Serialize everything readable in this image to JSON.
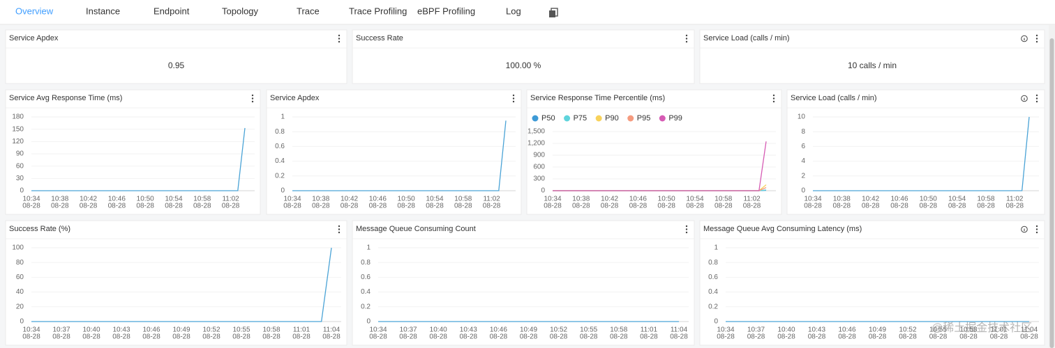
{
  "tabs": [
    "Overview",
    "Instance",
    "Endpoint",
    "Topology",
    "Trace",
    "Trace Profiling",
    "eBPF Profiling",
    "Log"
  ],
  "cards": [
    {
      "title": "Service Apdex",
      "value": "0.95"
    },
    {
      "title": "Success Rate",
      "value": "100.00 %"
    },
    {
      "title": "Service Load (calls / min)",
      "value": "10 calls / min"
    }
  ],
  "watermark": "@稀土掘金技术社区",
  "chart_data": [
    {
      "type": "line",
      "title": "Service Avg Response Time (ms)",
      "color": "#4aa3d6",
      "categories": [
        "10:34",
        null,
        null,
        null,
        "10:38",
        null,
        null,
        null,
        "10:42",
        null,
        null,
        null,
        "10:46",
        null,
        null,
        null,
        "10:50",
        null,
        null,
        null,
        "10:54",
        null,
        null,
        null,
        "10:58",
        null,
        null,
        null,
        "11:02",
        null,
        null
      ],
      "category_dates": [
        "08-28",
        null,
        null,
        null,
        "08-28",
        null,
        null,
        null,
        "08-28",
        null,
        null,
        null,
        "08-28",
        null,
        null,
        null,
        "08-28",
        null,
        null,
        null,
        "08-28",
        null,
        null,
        null,
        "08-28",
        null,
        null,
        null,
        "08-28",
        null,
        null
      ],
      "values": [
        0,
        0,
        0,
        0,
        0,
        0,
        0,
        0,
        0,
        0,
        0,
        0,
        0,
        0,
        0,
        0,
        0,
        0,
        0,
        0,
        0,
        0,
        0,
        0,
        0,
        0,
        0,
        0,
        0,
        0,
        153
      ],
      "ylim": [
        0,
        180
      ],
      "yticks": [
        0,
        30,
        60,
        90,
        120,
        150,
        180
      ],
      "grid": true
    },
    {
      "type": "line",
      "title": "Service Apdex",
      "color": "#4aa3d6",
      "categories": [
        "10:34",
        null,
        null,
        null,
        "10:38",
        null,
        null,
        null,
        "10:42",
        null,
        null,
        null,
        "10:46",
        null,
        null,
        null,
        "10:50",
        null,
        null,
        null,
        "10:54",
        null,
        null,
        null,
        "10:58",
        null,
        null,
        null,
        "11:02",
        null,
        null
      ],
      "category_dates": [
        "08-28",
        null,
        null,
        null,
        "08-28",
        null,
        null,
        null,
        "08-28",
        null,
        null,
        null,
        "08-28",
        null,
        null,
        null,
        "08-28",
        null,
        null,
        null,
        "08-28",
        null,
        null,
        null,
        "08-28",
        null,
        null,
        null,
        "08-28",
        null,
        null
      ],
      "values": [
        0,
        0,
        0,
        0,
        0,
        0,
        0,
        0,
        0,
        0,
        0,
        0,
        0,
        0,
        0,
        0,
        0,
        0,
        0,
        0,
        0,
        0,
        0,
        0,
        0,
        0,
        0,
        0,
        0,
        0,
        0.95
      ],
      "ylim": [
        0,
        1
      ],
      "yticks": [
        0,
        0.2,
        0.4,
        0.6,
        0.8,
        1
      ],
      "grid": true
    },
    {
      "type": "line",
      "title": "Service Response Time Percentile (ms)",
      "categories": [
        "10:34",
        null,
        null,
        null,
        "10:38",
        null,
        null,
        null,
        "10:42",
        null,
        null,
        null,
        "10:46",
        null,
        null,
        null,
        "10:50",
        null,
        null,
        null,
        "10:54",
        null,
        null,
        null,
        "10:58",
        null,
        null,
        null,
        "11:02",
        null,
        null
      ],
      "category_dates": [
        "08-28",
        null,
        null,
        null,
        "08-28",
        null,
        null,
        null,
        "08-28",
        null,
        null,
        null,
        "08-28",
        null,
        null,
        null,
        "08-28",
        null,
        null,
        null,
        "08-28",
        null,
        null,
        null,
        "08-28",
        null,
        null,
        null,
        "08-28",
        null,
        null
      ],
      "series": [
        {
          "name": "P50",
          "color": "#3d9ad6",
          "values": [
            0,
            0,
            0,
            0,
            0,
            0,
            0,
            0,
            0,
            0,
            0,
            0,
            0,
            0,
            0,
            0,
            0,
            0,
            0,
            0,
            0,
            0,
            0,
            0,
            0,
            0,
            0,
            0,
            0,
            0,
            10
          ]
        },
        {
          "name": "P75",
          "color": "#5fd4dc",
          "values": [
            0,
            0,
            0,
            0,
            0,
            0,
            0,
            0,
            0,
            0,
            0,
            0,
            0,
            0,
            0,
            0,
            0,
            0,
            0,
            0,
            0,
            0,
            0,
            0,
            0,
            0,
            0,
            0,
            0,
            0,
            20
          ]
        },
        {
          "name": "P90",
          "color": "#f8d25b",
          "values": [
            0,
            0,
            0,
            0,
            0,
            0,
            0,
            0,
            0,
            0,
            0,
            0,
            0,
            0,
            0,
            0,
            0,
            0,
            0,
            0,
            0,
            0,
            0,
            0,
            0,
            0,
            0,
            0,
            0,
            0,
            150
          ]
        },
        {
          "name": "P95",
          "color": "#f59b7f",
          "values": [
            0,
            0,
            0,
            0,
            0,
            0,
            0,
            0,
            0,
            0,
            0,
            0,
            0,
            0,
            0,
            0,
            0,
            0,
            0,
            0,
            0,
            0,
            0,
            0,
            0,
            0,
            0,
            0,
            0,
            0,
            80
          ]
        },
        {
          "name": "P99",
          "color": "#d65bb4",
          "values": [
            0,
            0,
            0,
            0,
            0,
            0,
            0,
            0,
            0,
            0,
            0,
            0,
            0,
            0,
            0,
            0,
            0,
            0,
            0,
            0,
            0,
            0,
            0,
            0,
            0,
            0,
            0,
            0,
            0,
            0,
            1250
          ]
        }
      ],
      "ylim": [
        0,
        1500
      ],
      "yticks": [
        0,
        300,
        600,
        900,
        {
          "value": 1200,
          "label": "1,200"
        },
        {
          "value": 1500,
          "label": "1,500"
        }
      ],
      "grid": true
    },
    {
      "type": "line",
      "title": "Service Load (calls / min)",
      "color": "#4aa3d6",
      "categories": [
        "10:34",
        null,
        null,
        null,
        "10:38",
        null,
        null,
        null,
        "10:42",
        null,
        null,
        null,
        "10:46",
        null,
        null,
        null,
        "10:50",
        null,
        null,
        null,
        "10:54",
        null,
        null,
        null,
        "10:58",
        null,
        null,
        null,
        "11:02",
        null,
        null
      ],
      "category_dates": [
        "08-28",
        null,
        null,
        null,
        "08-28",
        null,
        null,
        null,
        "08-28",
        null,
        null,
        null,
        "08-28",
        null,
        null,
        null,
        "08-28",
        null,
        null,
        null,
        "08-28",
        null,
        null,
        null,
        "08-28",
        null,
        null,
        null,
        "08-28",
        null,
        null
      ],
      "values": [
        0,
        0,
        0,
        0,
        0,
        0,
        0,
        0,
        0,
        0,
        0,
        0,
        0,
        0,
        0,
        0,
        0,
        0,
        0,
        0,
        0,
        0,
        0,
        0,
        0,
        0,
        0,
        0,
        0,
        0,
        10
      ],
      "ylim": [
        0,
        10
      ],
      "yticks": [
        0,
        2,
        4,
        6,
        8,
        10
      ],
      "grid": true
    },
    {
      "type": "line",
      "title": "Success Rate (%)",
      "color": "#4aa3d6",
      "categories": [
        "10:34",
        null,
        null,
        "10:37",
        null,
        null,
        "10:40",
        null,
        null,
        "10:43",
        null,
        null,
        "10:46",
        null,
        null,
        "10:49",
        null,
        null,
        "10:52",
        null,
        null,
        "10:55",
        null,
        null,
        "10:58",
        null,
        null,
        "11:01",
        null,
        null,
        "11:04"
      ],
      "category_dates": [
        "08-28",
        null,
        null,
        "08-28",
        null,
        null,
        "08-28",
        null,
        null,
        "08-28",
        null,
        null,
        "08-28",
        null,
        null,
        "08-28",
        null,
        null,
        "08-28",
        null,
        null,
        "08-28",
        null,
        null,
        "08-28",
        null,
        null,
        "08-28",
        null,
        null,
        "08-28"
      ],
      "values": [
        0,
        0,
        0,
        0,
        0,
        0,
        0,
        0,
        0,
        0,
        0,
        0,
        0,
        0,
        0,
        0,
        0,
        0,
        0,
        0,
        0,
        0,
        0,
        0,
        0,
        0,
        0,
        0,
        0,
        0,
        100
      ],
      "ylim": [
        0,
        100
      ],
      "yticks": [
        0,
        20,
        40,
        60,
        80,
        100
      ],
      "grid": true
    },
    {
      "type": "line",
      "title": "Message Queue Consuming Count",
      "color": "#4aa3d6",
      "categories": [
        "10:34",
        null,
        null,
        "10:37",
        null,
        null,
        "10:40",
        null,
        null,
        "10:43",
        null,
        null,
        "10:46",
        null,
        null,
        "10:49",
        null,
        null,
        "10:52",
        null,
        null,
        "10:55",
        null,
        null,
        "10:58",
        null,
        null,
        "11:01",
        null,
        null,
        "11:04"
      ],
      "category_dates": [
        "08-28",
        null,
        null,
        "08-28",
        null,
        null,
        "08-28",
        null,
        null,
        "08-28",
        null,
        null,
        "08-28",
        null,
        null,
        "08-28",
        null,
        null,
        "08-28",
        null,
        null,
        "08-28",
        null,
        null,
        "08-28",
        null,
        null,
        "08-28",
        null,
        null,
        "08-28"
      ],
      "values": [
        0,
        0,
        0,
        0,
        0,
        0,
        0,
        0,
        0,
        0,
        0,
        0,
        0,
        0,
        0,
        0,
        0,
        0,
        0,
        0,
        0,
        0,
        0,
        0,
        0,
        0,
        0,
        0,
        0,
        0,
        0
      ],
      "ylim": [
        0,
        1
      ],
      "yticks": [
        0,
        0.2,
        0.4,
        0.6,
        0.8,
        1
      ],
      "grid": true
    },
    {
      "type": "line",
      "title": "Message Queue Avg Consuming Latency (ms)",
      "color": "#4aa3d6",
      "categories": [
        "10:34",
        null,
        null,
        "10:37",
        null,
        null,
        "10:40",
        null,
        null,
        "10:43",
        null,
        null,
        "10:46",
        null,
        null,
        "10:49",
        null,
        null,
        "10:52",
        null,
        null,
        "10:55",
        null,
        null,
        "10:58",
        null,
        null,
        "11:01",
        null,
        null,
        "11:04"
      ],
      "category_dates": [
        "08-28",
        null,
        null,
        "08-28",
        null,
        null,
        "08-28",
        null,
        null,
        "08-28",
        null,
        null,
        "08-28",
        null,
        null,
        "08-28",
        null,
        null,
        "08-28",
        null,
        null,
        "08-28",
        null,
        null,
        "08-28",
        null,
        null,
        "08-28",
        null,
        null,
        "08-28"
      ],
      "values": [
        0,
        0,
        0,
        0,
        0,
        0,
        0,
        0,
        0,
        0,
        0,
        0,
        0,
        0,
        0,
        0,
        0,
        0,
        0,
        0,
        0,
        0,
        0,
        0,
        0,
        0,
        0,
        0,
        0,
        0,
        0
      ],
      "ylim": [
        0,
        1
      ],
      "yticks": [
        0,
        0.2,
        0.4,
        0.6,
        0.8,
        1
      ],
      "grid": true
    }
  ]
}
